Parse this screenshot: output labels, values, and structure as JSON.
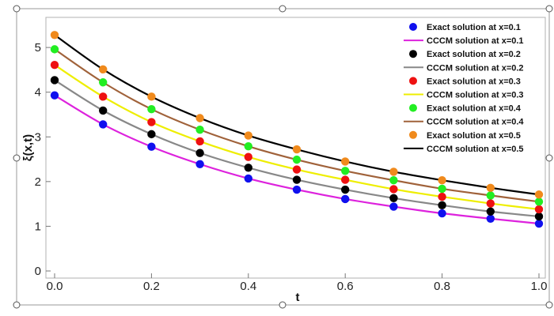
{
  "chart_data": {
    "type": "line",
    "title": "",
    "xlabel": "t",
    "ylabel": "ξ(x,t)",
    "xlim": [
      0,
      1
    ],
    "ylim": [
      0,
      5.55
    ],
    "x_ticks": [
      "0.0",
      "0.2",
      "0.4",
      "0.6",
      "0.8",
      "1.0"
    ],
    "y_ticks": [
      "0",
      "1",
      "2",
      "3",
      "4",
      "5"
    ],
    "grid": false,
    "legend_position": "top-right",
    "x": [
      0.0,
      0.1,
      0.2,
      0.3,
      0.4,
      0.5,
      0.6,
      0.7,
      0.8,
      0.9,
      1.0
    ],
    "series": [
      {
        "x_label": "x=0.1",
        "exact_name": "Exact solution at x=0.1",
        "cccm_name": "CCCM solution at x=0.1",
        "marker_color": "#1010ee",
        "line_color": "#dd22dd",
        "values": [
          3.93,
          3.28,
          2.78,
          2.39,
          2.07,
          1.82,
          1.61,
          1.44,
          1.29,
          1.17,
          1.06
        ]
      },
      {
        "x_label": "x=0.2",
        "exact_name": "Exact solution at x=0.2",
        "cccm_name": "CCCM solution at x=0.2",
        "marker_color": "#000000",
        "line_color": "#888888",
        "values": [
          4.27,
          3.59,
          3.06,
          2.64,
          2.31,
          2.04,
          1.82,
          1.63,
          1.47,
          1.33,
          1.22
        ]
      },
      {
        "x_label": "x=0.3",
        "exact_name": "Exact solution at x=0.3",
        "cccm_name": "CCCM solution at x=0.3",
        "marker_color": "#ee1111",
        "line_color": "#eeee00",
        "values": [
          4.61,
          3.9,
          3.33,
          2.9,
          2.55,
          2.27,
          2.04,
          1.83,
          1.66,
          1.51,
          1.38
        ]
      },
      {
        "x_label": "x=0.4",
        "exact_name": "Exact solution at x=0.4",
        "cccm_name": "CCCM solution at x=0.4",
        "marker_color": "#22ee22",
        "line_color": "#a0623a",
        "values": [
          4.96,
          4.22,
          3.62,
          3.16,
          2.79,
          2.49,
          2.24,
          2.03,
          1.84,
          1.69,
          1.55
        ]
      },
      {
        "x_label": "x=0.5",
        "exact_name": "Exact solution at x=0.5",
        "cccm_name": "CCCM solution at x=0.5",
        "marker_color": "#f08a1c",
        "line_color": "#000000",
        "values": [
          5.28,
          4.51,
          3.9,
          3.42,
          3.03,
          2.72,
          2.45,
          2.22,
          2.03,
          1.86,
          1.71
        ]
      }
    ]
  }
}
